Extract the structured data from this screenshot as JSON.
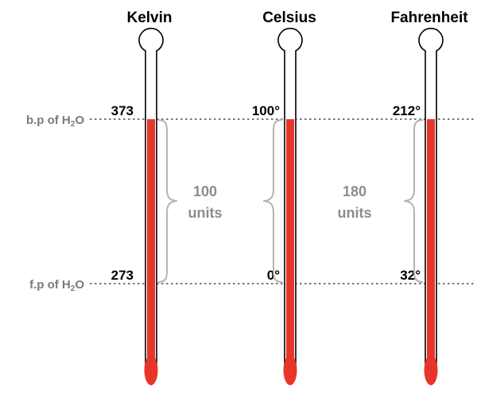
{
  "reference_lines": {
    "boiling": {
      "prefix": "b.p of H",
      "subscript": "2",
      "suffix": "O"
    },
    "freezing": {
      "prefix": "f.p of H",
      "subscript": "2",
      "suffix": "O"
    }
  },
  "scales": [
    {
      "title": "Kelvin",
      "boiling": "373",
      "freezing": "273"
    },
    {
      "title": "Celsius",
      "boiling": "100°",
      "freezing": "0°"
    },
    {
      "title": "Fahrenheit",
      "boiling": "212°",
      "freezing": "32°"
    }
  ],
  "ranges": [
    {
      "number": "100",
      "unit": "units"
    },
    {
      "number": "180",
      "unit": "units"
    }
  ],
  "colors": {
    "liquid": "#e8352a",
    "reference_line": "#777777",
    "brace": "#b3b3b3"
  }
}
